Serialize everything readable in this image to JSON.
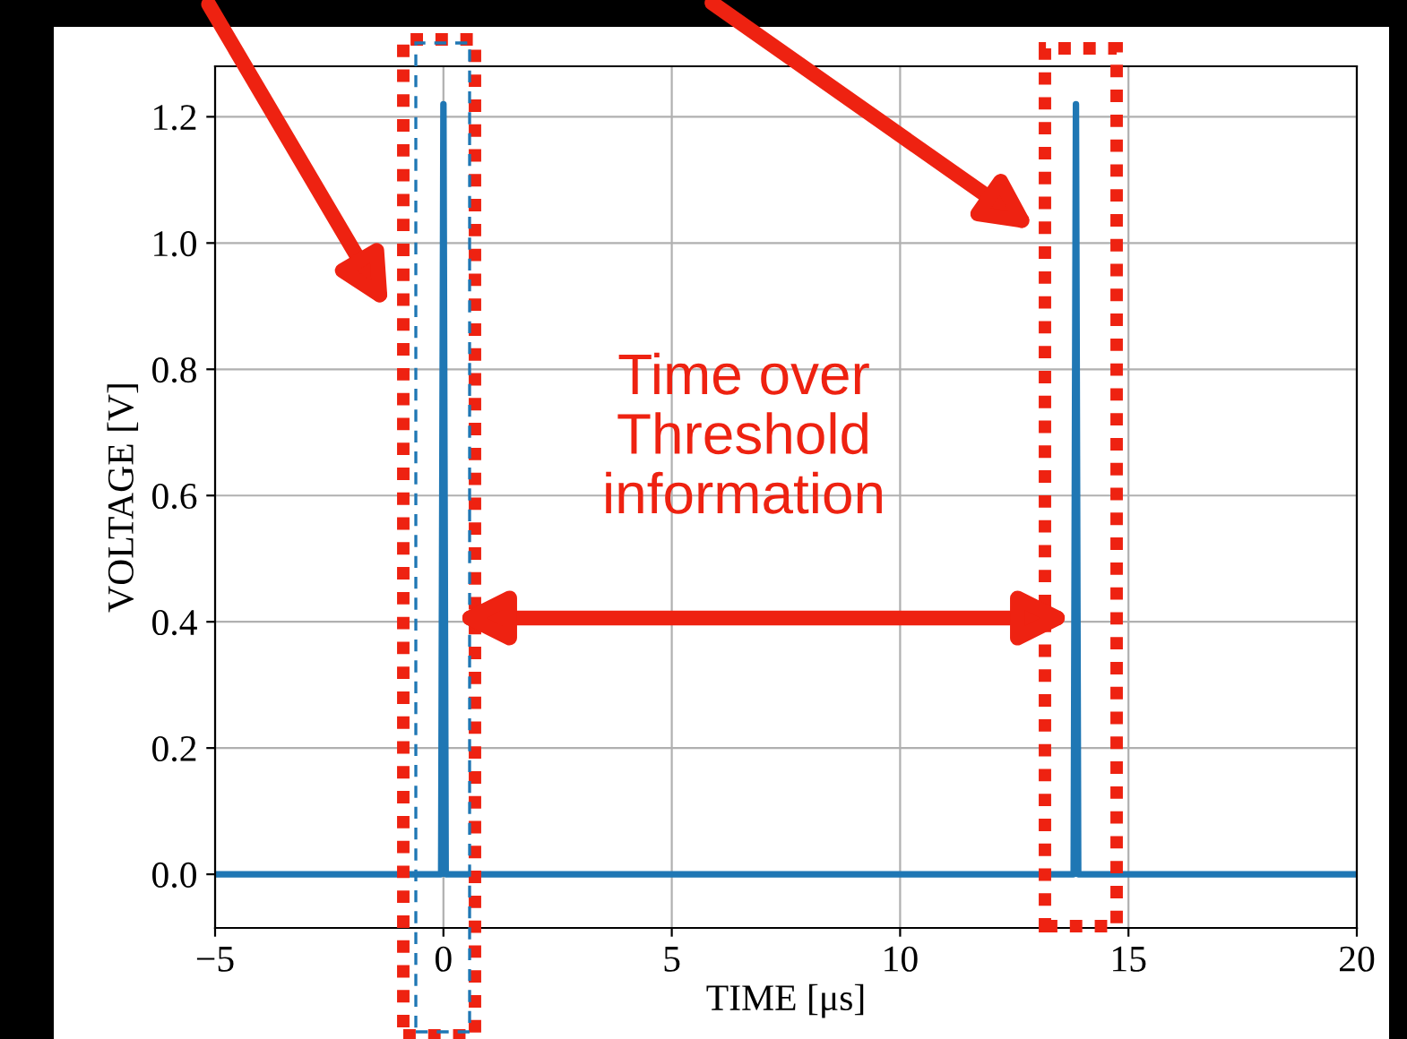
{
  "chart_data": {
    "type": "line",
    "xlabel": "TIME [μs]",
    "ylabel": "VOLTAGE [V]",
    "x": [
      -5,
      -0.05,
      0,
      0.05,
      13.8,
      13.85,
      13.9,
      20
    ],
    "series": [
      {
        "color": "#1f77b4",
        "values": [
          0,
          0,
          1.22,
          0,
          0,
          1.22,
          0,
          0
        ]
      }
    ],
    "xlim": [
      -5,
      20
    ],
    "xticks": [
      -5,
      0,
      5,
      10,
      15,
      20
    ],
    "ylim": [
      -0.085,
      1.28
    ],
    "yticks": [
      {
        "value": 0,
        "label": "0.0"
      },
      {
        "value": 0.2,
        "label": "0.2"
      },
      {
        "value": 0.4,
        "label": "0.4"
      },
      {
        "value": 0.6,
        "label": "0.6"
      },
      {
        "value": 0.8,
        "label": "0.8"
      },
      {
        "value": 1.0,
        "label": "1.0"
      },
      {
        "value": 1.2,
        "label": "1.2"
      }
    ],
    "grid": true,
    "annotations": [
      "Time over\nThreshold\ninformation"
    ]
  }
}
